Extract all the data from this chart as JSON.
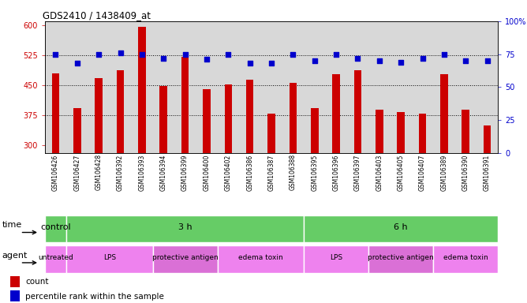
{
  "title": "GDS2410 / 1438409_at",
  "samples": [
    "GSM106426",
    "GSM106427",
    "GSM106428",
    "GSM106392",
    "GSM106393",
    "GSM106394",
    "GSM106399",
    "GSM106400",
    "GSM106402",
    "GSM106386",
    "GSM106387",
    "GSM106388",
    "GSM106395",
    "GSM106396",
    "GSM106397",
    "GSM106403",
    "GSM106405",
    "GSM106407",
    "GSM106389",
    "GSM106390",
    "GSM106391"
  ],
  "counts": [
    480,
    392,
    468,
    487,
    595,
    447,
    520,
    440,
    451,
    463,
    378,
    455,
    392,
    478,
    487,
    388,
    382,
    378,
    478,
    388,
    348
  ],
  "percentiles": [
    75,
    68,
    75,
    76,
    75,
    72,
    75,
    71,
    75,
    68,
    68,
    75,
    70,
    75,
    72,
    70,
    69,
    72,
    75,
    70,
    70
  ],
  "ylim_left": [
    280,
    610
  ],
  "ylim_right": [
    0,
    100
  ],
  "yticks_left": [
    300,
    375,
    450,
    525,
    600
  ],
  "yticks_right": [
    0,
    25,
    50,
    75,
    100
  ],
  "bar_color": "#cc0000",
  "dot_color": "#0000cc",
  "bg_color": "#d8d8d8",
  "time_groups": [
    {
      "label": "control",
      "start": 0,
      "end": 1
    },
    {
      "label": "3 h",
      "start": 1,
      "end": 12
    },
    {
      "label": "6 h",
      "start": 12,
      "end": 21
    }
  ],
  "agent_groups": [
    {
      "label": "untreated",
      "start": 0,
      "end": 1,
      "color": "#ee82ee"
    },
    {
      "label": "LPS",
      "start": 1,
      "end": 5,
      "color": "#ee82ee"
    },
    {
      "label": "protective antigen",
      "start": 5,
      "end": 8,
      "color": "#da70d6"
    },
    {
      "label": "edema toxin",
      "start": 8,
      "end": 12,
      "color": "#ee82ee"
    },
    {
      "label": "LPS",
      "start": 12,
      "end": 15,
      "color": "#ee82ee"
    },
    {
      "label": "protective antigen",
      "start": 15,
      "end": 18,
      "color": "#da70d6"
    },
    {
      "label": "edema toxin",
      "start": 18,
      "end": 21,
      "color": "#ee82ee"
    }
  ],
  "time_label": "time",
  "agent_label": "agent",
  "legend_count": "count",
  "legend_pct": "percentile rank within the sample",
  "green_color": "#66cc66",
  "violet_color": "#ee82ee",
  "dark_violet": "#da70d6"
}
